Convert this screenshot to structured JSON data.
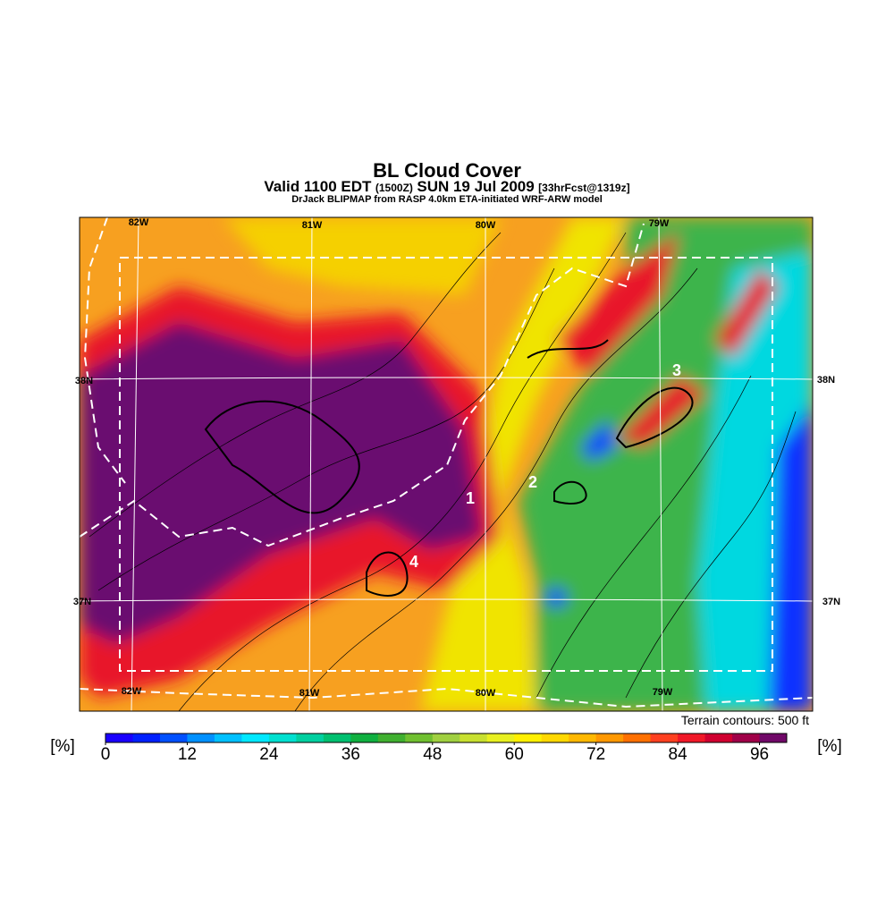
{
  "header": {
    "title": "BL Cloud Cover",
    "subtitle": [
      "Valid 1100 EDT",
      "(1500Z)",
      "SUN 19 Jul 2009",
      "[33hrFcst@1319z]"
    ],
    "source": "DrJack BLIPMAP from RASP 4.0km ETA-initiated WRF-ARW model"
  },
  "map": {
    "lon_labels_top": [
      "82W",
      "81W",
      "80W",
      "79W"
    ],
    "lon_labels_bottom": [
      "82W",
      "81W",
      "80W",
      "79W"
    ],
    "lat_labels_left": [
      "38N",
      "37N"
    ],
    "lat_labels_right": [
      "38N",
      "37N"
    ],
    "markers": [
      "1",
      "2",
      "3",
      "4"
    ],
    "note": "Terrain contours: 500 ft"
  },
  "colorbar": {
    "unit_left": "[%]",
    "unit_right": "[%]",
    "range": [
      0,
      100
    ],
    "step": 4,
    "ticks": [
      0,
      12,
      24,
      36,
      48,
      60,
      72,
      84,
      96
    ],
    "colors": [
      "#1a00ff",
      "#0020ff",
      "#0050ff",
      "#0090ff",
      "#00c0ff",
      "#00e8ff",
      "#00e0d0",
      "#00d0a0",
      "#00c070",
      "#10b040",
      "#40b030",
      "#70c030",
      "#a0d040",
      "#c8e030",
      "#e8f020",
      "#fff000",
      "#ffd800",
      "#ffb800",
      "#ff9800",
      "#ff7000",
      "#ff4020",
      "#f01828",
      "#d00030",
      "#a00048",
      "#700868"
    ]
  }
}
